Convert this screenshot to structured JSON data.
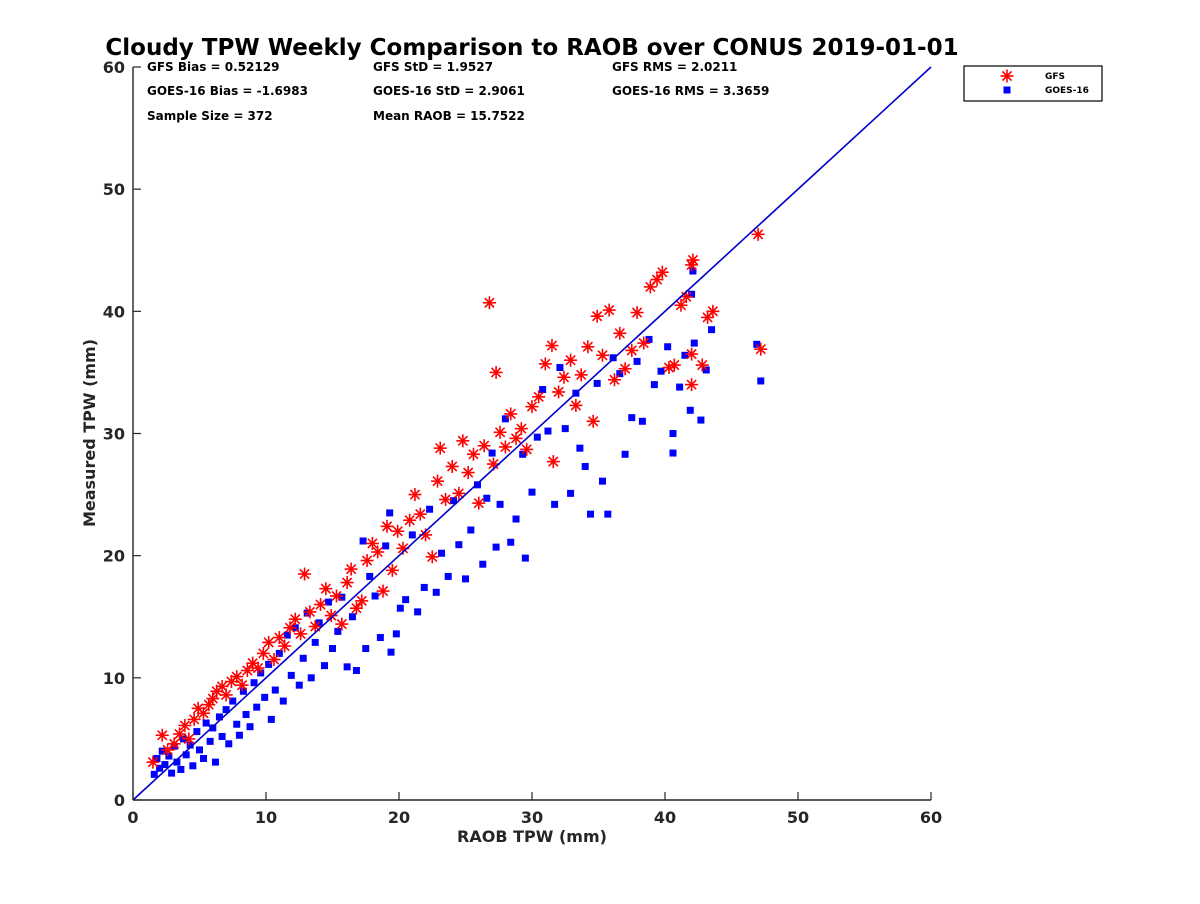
{
  "chart_data": {
    "type": "scatter",
    "title": "Cloudy TPW Weekly Comparison to RAOB over CONUS 2019-01-01",
    "xlabel": "RAOB TPW (mm)",
    "ylabel": "Measured TPW (mm)",
    "xlim": [
      0,
      60
    ],
    "ylim": [
      0,
      60
    ],
    "xticks": [
      0,
      10,
      20,
      30,
      40,
      50,
      60
    ],
    "yticks": [
      0,
      10,
      20,
      30,
      40,
      50,
      60
    ],
    "grid": false,
    "legend_position": "top-right outside",
    "reference_line": {
      "x": [
        0,
        60
      ],
      "y": [
        0,
        60
      ],
      "color": "#0000cc"
    },
    "stats": [
      [
        "GFS Bias = 0.52129",
        "GFS StD = 1.9527",
        "GFS RMS = 2.0211"
      ],
      [
        "GOES-16 Bias = -1.6983",
        "GOES-16 StD = 2.9061",
        "GOES-16 RMS = 3.3659"
      ],
      [
        "Sample Size = 372",
        "Mean RAOB = 15.7522"
      ]
    ],
    "series": [
      {
        "name": "GFS",
        "marker": "asterisk",
        "color": "#ff0000",
        "points": [
          [
            1.5,
            3.1
          ],
          [
            2.2,
            5.3
          ],
          [
            2.6,
            4.1
          ],
          [
            3.1,
            4.6
          ],
          [
            3.5,
            5.4
          ],
          [
            3.9,
            6.1
          ],
          [
            4.2,
            5.0
          ],
          [
            4.6,
            6.6
          ],
          [
            4.9,
            7.5
          ],
          [
            5.3,
            7.1
          ],
          [
            5.7,
            7.8
          ],
          [
            6.0,
            8.3
          ],
          [
            6.3,
            8.9
          ],
          [
            6.7,
            9.3
          ],
          [
            7.0,
            8.6
          ],
          [
            7.4,
            9.7
          ],
          [
            7.8,
            10.1
          ],
          [
            8.2,
            9.4
          ],
          [
            8.6,
            10.6
          ],
          [
            9.0,
            11.2
          ],
          [
            9.4,
            10.8
          ],
          [
            9.8,
            12.0
          ],
          [
            10.2,
            12.9
          ],
          [
            10.6,
            11.5
          ],
          [
            11.0,
            13.3
          ],
          [
            11.4,
            12.6
          ],
          [
            11.8,
            14.1
          ],
          [
            12.2,
            14.8
          ],
          [
            12.6,
            13.6
          ],
          [
            12.9,
            18.5
          ],
          [
            13.3,
            15.4
          ],
          [
            13.7,
            14.2
          ],
          [
            14.1,
            16.0
          ],
          [
            14.5,
            17.3
          ],
          [
            14.9,
            15.1
          ],
          [
            15.3,
            16.7
          ],
          [
            15.7,
            14.4
          ],
          [
            16.1,
            17.8
          ],
          [
            16.4,
            18.9
          ],
          [
            16.8,
            15.7
          ],
          [
            17.2,
            16.3
          ],
          [
            17.6,
            19.6
          ],
          [
            18.0,
            21.0
          ],
          [
            18.4,
            20.3
          ],
          [
            18.8,
            17.1
          ],
          [
            19.1,
            22.4
          ],
          [
            19.5,
            18.8
          ],
          [
            19.9,
            22.0
          ],
          [
            20.3,
            20.6
          ],
          [
            20.8,
            22.9
          ],
          [
            21.2,
            25.0
          ],
          [
            21.6,
            23.4
          ],
          [
            22.0,
            21.7
          ],
          [
            22.5,
            19.9
          ],
          [
            22.9,
            26.1
          ],
          [
            23.1,
            28.8
          ],
          [
            23.5,
            24.6
          ],
          [
            24.0,
            27.3
          ],
          [
            24.5,
            25.1
          ],
          [
            24.8,
            29.4
          ],
          [
            25.2,
            26.8
          ],
          [
            25.6,
            28.3
          ],
          [
            26.0,
            24.3
          ],
          [
            26.4,
            29.0
          ],
          [
            26.8,
            40.7
          ],
          [
            27.1,
            27.5
          ],
          [
            27.3,
            35.0
          ],
          [
            27.6,
            30.1
          ],
          [
            28.0,
            28.9
          ],
          [
            28.4,
            31.6
          ],
          [
            28.8,
            29.6
          ],
          [
            29.2,
            30.4
          ],
          [
            29.6,
            28.7
          ],
          [
            30.0,
            32.2
          ],
          [
            30.5,
            33.0
          ],
          [
            31.0,
            35.7
          ],
          [
            31.5,
            37.2
          ],
          [
            31.6,
            27.7
          ],
          [
            32.0,
            33.4
          ],
          [
            32.4,
            34.6
          ],
          [
            32.9,
            36.0
          ],
          [
            33.3,
            32.3
          ],
          [
            33.7,
            34.8
          ],
          [
            34.2,
            37.1
          ],
          [
            34.6,
            31.0
          ],
          [
            34.9,
            39.6
          ],
          [
            35.3,
            36.4
          ],
          [
            35.8,
            40.1
          ],
          [
            36.2,
            34.4
          ],
          [
            36.6,
            38.2
          ],
          [
            37.0,
            35.3
          ],
          [
            37.5,
            36.8
          ],
          [
            37.9,
            39.9
          ],
          [
            38.4,
            37.4
          ],
          [
            38.9,
            42.0
          ],
          [
            39.4,
            42.6
          ],
          [
            39.8,
            43.2
          ],
          [
            40.3,
            35.4
          ],
          [
            40.7,
            35.6
          ],
          [
            41.2,
            40.5
          ],
          [
            41.6,
            41.2
          ],
          [
            42.0,
            36.5
          ],
          [
            42.0,
            34.0
          ],
          [
            42.0,
            43.8
          ],
          [
            42.1,
            44.2
          ],
          [
            42.8,
            35.6
          ],
          [
            43.2,
            39.5
          ],
          [
            43.6,
            40.0
          ],
          [
            47.0,
            46.3
          ],
          [
            47.2,
            36.9
          ]
        ]
      },
      {
        "name": "GOES-16",
        "marker": "square",
        "color": "#0000ff",
        "points": [
          [
            1.6,
            2.1
          ],
          [
            1.8,
            3.4
          ],
          [
            2.0,
            2.6
          ],
          [
            2.2,
            4.0
          ],
          [
            2.4,
            2.9
          ],
          [
            2.7,
            3.6
          ],
          [
            2.9,
            2.2
          ],
          [
            3.1,
            4.4
          ],
          [
            3.3,
            3.1
          ],
          [
            3.6,
            2.5
          ],
          [
            3.8,
            5.0
          ],
          [
            4.0,
            3.7
          ],
          [
            4.3,
            4.5
          ],
          [
            4.5,
            2.8
          ],
          [
            4.8,
            5.6
          ],
          [
            5.0,
            4.1
          ],
          [
            5.3,
            3.4
          ],
          [
            5.5,
            6.3
          ],
          [
            5.8,
            4.8
          ],
          [
            6.0,
            5.9
          ],
          [
            6.2,
            3.1
          ],
          [
            6.5,
            6.8
          ],
          [
            6.7,
            5.2
          ],
          [
            7.0,
            7.4
          ],
          [
            7.2,
            4.6
          ],
          [
            7.5,
            8.1
          ],
          [
            7.8,
            6.2
          ],
          [
            8.0,
            5.3
          ],
          [
            8.3,
            8.9
          ],
          [
            8.5,
            7.0
          ],
          [
            8.8,
            6.0
          ],
          [
            9.1,
            9.6
          ],
          [
            9.3,
            7.6
          ],
          [
            9.6,
            10.4
          ],
          [
            9.9,
            8.4
          ],
          [
            10.2,
            11.1
          ],
          [
            10.4,
            6.6
          ],
          [
            10.7,
            9.0
          ],
          [
            11.0,
            12.0
          ],
          [
            11.3,
            8.1
          ],
          [
            11.6,
            13.5
          ],
          [
            11.9,
            10.2
          ],
          [
            12.2,
            14.1
          ],
          [
            12.5,
            9.4
          ],
          [
            12.8,
            11.6
          ],
          [
            13.1,
            15.3
          ],
          [
            13.4,
            10.0
          ],
          [
            13.7,
            12.9
          ],
          [
            14.0,
            14.5
          ],
          [
            14.4,
            11.0
          ],
          [
            14.7,
            16.2
          ],
          [
            15.0,
            12.4
          ],
          [
            15.4,
            13.8
          ],
          [
            15.7,
            16.6
          ],
          [
            16.1,
            10.9
          ],
          [
            16.5,
            15.0
          ],
          [
            16.8,
            10.6
          ],
          [
            17.3,
            21.2
          ],
          [
            17.5,
            12.4
          ],
          [
            17.8,
            18.3
          ],
          [
            18.2,
            16.7
          ],
          [
            18.6,
            13.3
          ],
          [
            19.0,
            20.8
          ],
          [
            19.3,
            23.5
          ],
          [
            19.4,
            12.1
          ],
          [
            19.8,
            13.6
          ],
          [
            20.1,
            15.7
          ],
          [
            20.5,
            16.4
          ],
          [
            21.0,
            21.7
          ],
          [
            21.4,
            15.4
          ],
          [
            21.9,
            17.4
          ],
          [
            22.3,
            23.8
          ],
          [
            22.8,
            17.0
          ],
          [
            23.2,
            20.2
          ],
          [
            23.7,
            18.3
          ],
          [
            24.1,
            24.5
          ],
          [
            24.5,
            20.9
          ],
          [
            25.0,
            18.1
          ],
          [
            25.4,
            22.1
          ],
          [
            25.9,
            25.8
          ],
          [
            26.3,
            19.3
          ],
          [
            26.6,
            24.7
          ],
          [
            27.0,
            28.4
          ],
          [
            27.3,
            20.7
          ],
          [
            27.6,
            24.2
          ],
          [
            28.0,
            31.2
          ],
          [
            28.4,
            21.1
          ],
          [
            28.8,
            23.0
          ],
          [
            29.3,
            28.3
          ],
          [
            29.5,
            19.8
          ],
          [
            30.0,
            25.2
          ],
          [
            30.4,
            29.7
          ],
          [
            30.8,
            33.6
          ],
          [
            31.2,
            30.2
          ],
          [
            31.7,
            24.2
          ],
          [
            32.1,
            35.4
          ],
          [
            32.5,
            30.4
          ],
          [
            32.9,
            25.1
          ],
          [
            33.3,
            33.3
          ],
          [
            33.6,
            28.8
          ],
          [
            34.0,
            27.3
          ],
          [
            34.4,
            23.4
          ],
          [
            34.9,
            34.1
          ],
          [
            35.3,
            26.1
          ],
          [
            35.7,
            23.4
          ],
          [
            36.1,
            36.2
          ],
          [
            36.6,
            34.9
          ],
          [
            37.0,
            28.3
          ],
          [
            37.5,
            31.3
          ],
          [
            37.9,
            35.9
          ],
          [
            38.3,
            31.0
          ],
          [
            38.8,
            37.7
          ],
          [
            39.2,
            34.0
          ],
          [
            39.7,
            35.1
          ],
          [
            40.2,
            37.1
          ],
          [
            40.6,
            30.0
          ],
          [
            40.6,
            28.4
          ],
          [
            41.1,
            33.8
          ],
          [
            41.5,
            36.4
          ],
          [
            41.9,
            31.9
          ],
          [
            42.0,
            41.4
          ],
          [
            42.1,
            43.3
          ],
          [
            42.2,
            37.4
          ],
          [
            42.7,
            31.1
          ],
          [
            43.1,
            35.2
          ],
          [
            43.5,
            38.5
          ],
          [
            46.9,
            37.3
          ],
          [
            47.2,
            34.3
          ]
        ]
      }
    ]
  }
}
